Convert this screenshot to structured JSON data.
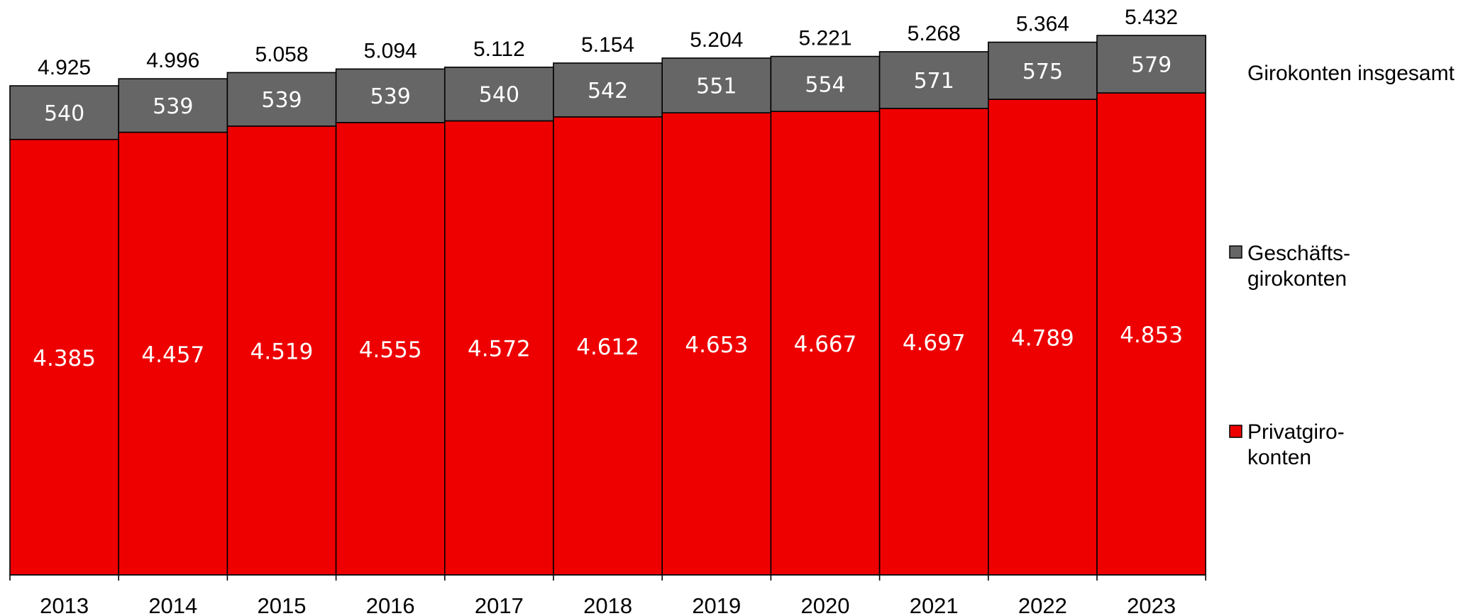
{
  "chart_data": {
    "type": "bar",
    "stacked": true,
    "categories": [
      "2013",
      "2014",
      "2015",
      "2016",
      "2017",
      "2018",
      "2019",
      "2020",
      "2021",
      "2022",
      "2023"
    ],
    "series": [
      {
        "name": "Privatgiro-konten",
        "legend_lines": [
          "Privatgiro-",
          "konten"
        ],
        "color": "#ee0000",
        "values": [
          4385,
          4457,
          4519,
          4555,
          4572,
          4612,
          4653,
          4667,
          4697,
          4789,
          4853
        ],
        "value_labels": [
          "4.385",
          "4.457",
          "4.519",
          "4.555",
          "4.572",
          "4.612",
          "4.653",
          "4.667",
          "4.697",
          "4.789",
          "4.853"
        ]
      },
      {
        "name": "Geschäfts-girokonten",
        "legend_lines": [
          "Geschäfts-",
          "girokonten"
        ],
        "color": "#666666",
        "values": [
          540,
          539,
          539,
          539,
          540,
          542,
          551,
          554,
          571,
          575,
          579
        ],
        "value_labels": [
          "540",
          "539",
          "539",
          "539",
          "540",
          "542",
          "551",
          "554",
          "571",
          "575",
          "579"
        ]
      }
    ],
    "totals": {
      "name": "Girokonten insgesamt",
      "values": [
        4925,
        4996,
        5058,
        5094,
        5112,
        5154,
        5204,
        5221,
        5268,
        5364,
        5432
      ],
      "value_labels": [
        "4.925",
        "4.996",
        "5.058",
        "5.094",
        "5.112",
        "5.154",
        "5.204",
        "5.221",
        "5.268",
        "5.364",
        "5.432"
      ]
    },
    "ylim": [
      0,
      5432
    ],
    "grid": false,
    "legend_position": "right"
  }
}
